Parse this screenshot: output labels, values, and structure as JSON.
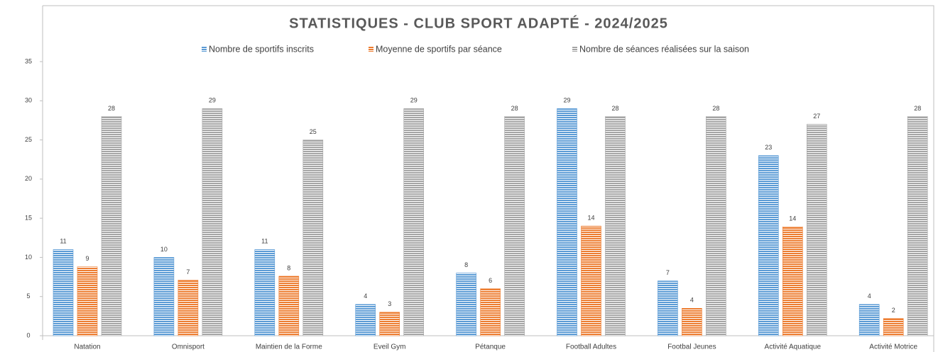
{
  "chart_data": {
    "type": "bar",
    "title": "STATISTIQUES - CLUB SPORT ADAPTÉ - 2024/2025",
    "categories": [
      "Natation",
      "Omnisport",
      "Maintien de la Forme",
      "Eveil Gym",
      "Pétanque",
      "Football Adultes",
      "Footbal Jeunes",
      "Activité Aquatique",
      "Activité Motrice"
    ],
    "series": [
      {
        "name": "Nombre de sportifs inscrits",
        "color": "#5b9bd5",
        "values": [
          11,
          10,
          11,
          4,
          8,
          29,
          7,
          23,
          4
        ]
      },
      {
        "name": "Moyenne de sportifs par séance",
        "color": "#ed7d31",
        "values": [
          8.8,
          7.1,
          7.6,
          3,
          6,
          14,
          3.5,
          13.9,
          2.2
        ],
        "value_labels": [
          "9",
          "7",
          "8",
          "3",
          "6",
          "14",
          "4",
          "14",
          "2"
        ]
      },
      {
        "name": "Nombre de séances réalisées sur la saison",
        "color": "#a5a5a5",
        "values": [
          28,
          29,
          25,
          29,
          28,
          28,
          28,
          27,
          28
        ]
      }
    ],
    "ylim": [
      0,
      35
    ],
    "yticks": [
      0,
      5,
      10,
      15,
      20,
      25,
      30,
      35
    ],
    "legend": "top"
  }
}
